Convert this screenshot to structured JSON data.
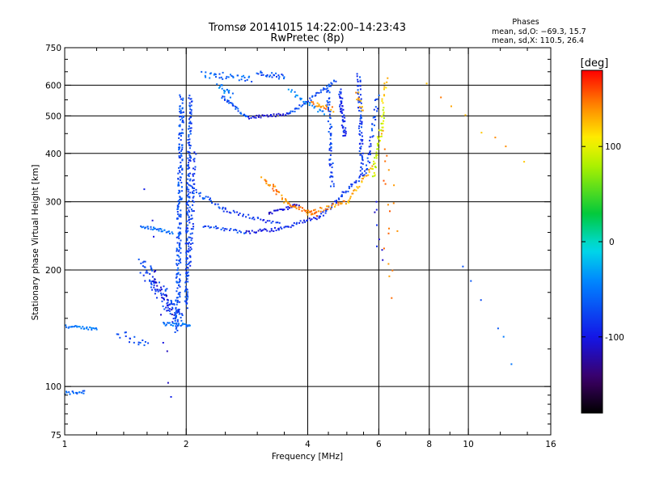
{
  "header": {
    "title": "Tromsø 20141015 14:22:00–14:23:43",
    "subtitle": "RwPretec (8p)"
  },
  "phase_info": {
    "heading": "Phases",
    "o_line": "mean, sd,O: −69.3, 15.7",
    "x_line": "mean, sd,X: 110.5, 26.4"
  },
  "chart_data": {
    "type": "scatter",
    "xlabel": "Frequency [MHz]",
    "ylabel": "Stationary phase Virtual Height [km]",
    "x_scale": "log",
    "y_scale": "log",
    "xlim": [
      1,
      16
    ],
    "ylim": [
      75,
      750
    ],
    "x_ticks": [
      1,
      2,
      4,
      6,
      8,
      10,
      16
    ],
    "y_ticks": [
      75,
      100,
      200,
      300,
      400,
      500,
      600,
      750
    ],
    "x_gridlines": [
      2,
      4,
      6,
      8,
      10
    ],
    "y_gridlines": [
      100,
      200,
      300,
      400,
      500,
      600
    ],
    "grid": true,
    "colorbar": {
      "label": "[deg]",
      "range": [
        -180,
        180
      ],
      "ticks": [
        100,
        0,
        -100
      ],
      "colormap": "rainbow"
    },
    "series": [
      {
        "start": [
          1.0,
          96
        ],
        "end": [
          1.12,
          97
        ],
        "phase": -60,
        "count": 18,
        "spread": 0.012
      },
      {
        "start": [
          1.0,
          143
        ],
        "end": [
          1.2,
          141
        ],
        "phase": -50,
        "count": 28,
        "spread": 0.008
      },
      {
        "start": [
          1.35,
          138
        ],
        "end": [
          1.6,
          128
        ],
        "phase": -70,
        "count": 18,
        "spread": 0.03
      },
      {
        "start": [
          1.55,
          258
        ],
        "end": [
          1.85,
          250
        ],
        "phase": -55,
        "count": 30,
        "spread": 0.01
      },
      {
        "start": [
          1.55,
          205
        ],
        "end": [
          1.95,
          148
        ],
        "phase": -75,
        "count": 90,
        "spread": 0.05
      },
      {
        "start": [
          1.65,
          195
        ],
        "end": [
          1.85,
          150
        ],
        "phase": -110,
        "count": 25,
        "spread": 0.03
      },
      {
        "start": [
          1.75,
          145
        ],
        "end": [
          2.05,
          144
        ],
        "phase": -50,
        "count": 30,
        "spread": 0.01
      },
      {
        "start": [
          1.9,
          140
        ],
        "end": [
          1.95,
          560
        ],
        "phase": -70,
        "count": 220,
        "spread": 0.025
      },
      {
        "start": [
          2.0,
          160
        ],
        "end": [
          2.05,
          560
        ],
        "phase": -75,
        "count": 170,
        "spread": 0.02
      },
      {
        "start": [
          2.05,
          205
        ],
        "end": [
          2.1,
          400
        ],
        "phase": -80,
        "count": 50,
        "spread": 0.015
      },
      {
        "start": [
          2.2,
          640
        ],
        "end": [
          2.9,
          625
        ],
        "phase": -60,
        "count": 35,
        "spread": 0.02
      },
      {
        "start": [
          3.0,
          645
        ],
        "end": [
          3.5,
          630
        ],
        "phase": -70,
        "count": 25,
        "spread": 0.015
      },
      {
        "start": [
          2.4,
          600
        ],
        "end": [
          2.6,
          565
        ],
        "phase": -45,
        "count": 18,
        "spread": 0.02
      },
      {
        "start": [
          2.45,
          560
        ],
        "end": [
          2.85,
          495
        ],
        "phase": -70,
        "count": 30,
        "spread": 0.01
      },
      {
        "start": [
          2.85,
          495
        ],
        "end": [
          3.6,
          505
        ],
        "phase": -105,
        "count": 30,
        "spread": 0.008
      },
      {
        "start": [
          3.6,
          505
        ],
        "end": [
          4.7,
          615
        ],
        "phase": -75,
        "count": 40,
        "spread": 0.01
      },
      {
        "start": [
          3.6,
          580
        ],
        "end": [
          4.4,
          505
        ],
        "phase": -45,
        "count": 25,
        "spread": 0.015
      },
      {
        "start": [
          4.1,
          540
        ],
        "end": [
          4.6,
          520
        ],
        "phase": 140,
        "count": 20,
        "spread": 0.015
      },
      {
        "start": [
          4.5,
          600
        ],
        "end": [
          4.6,
          330
        ],
        "phase": -75,
        "count": 60,
        "spread": 0.02
      },
      {
        "start": [
          4.8,
          580
        ],
        "end": [
          4.95,
          440
        ],
        "phase": -90,
        "count": 50,
        "spread": 0.02
      },
      {
        "start": [
          5.35,
          640
        ],
        "end": [
          5.45,
          360
        ],
        "phase": -80,
        "count": 70,
        "spread": 0.02
      },
      {
        "start": [
          5.3,
          570
        ],
        "end": [
          5.45,
          520
        ],
        "phase": 130,
        "count": 12,
        "spread": 0.02
      },
      {
        "start": [
          2.0,
          330
        ],
        "end": [
          2.5,
          285
        ],
        "phase": -70,
        "count": 30,
        "spread": 0.015
      },
      {
        "start": [
          2.5,
          285
        ],
        "end": [
          3.4,
          262
        ],
        "phase": -85,
        "count": 30,
        "spread": 0.01
      },
      {
        "start": [
          2.2,
          260
        ],
        "end": [
          2.8,
          250
        ],
        "phase": -75,
        "count": 25,
        "spread": 0.01
      },
      {
        "start": [
          2.8,
          250
        ],
        "end": [
          3.4,
          255
        ],
        "phase": -100,
        "count": 25,
        "spread": 0.01
      },
      {
        "start": [
          3.4,
          255
        ],
        "end": [
          4.3,
          275
        ],
        "phase": -90,
        "count": 30,
        "spread": 0.01
      },
      {
        "start": [
          4.3,
          275
        ],
        "end": [
          5.6,
          360
        ],
        "phase": -80,
        "count": 45,
        "spread": 0.012
      },
      {
        "start": [
          5.6,
          360
        ],
        "end": [
          5.95,
          560
        ],
        "phase": -75,
        "count": 35,
        "spread": 0.02
      },
      {
        "start": [
          3.2,
          280
        ],
        "end": [
          3.8,
          295
        ],
        "phase": -105,
        "count": 25,
        "spread": 0.01
      },
      {
        "start": [
          3.1,
          345
        ],
        "end": [
          3.6,
          295
        ],
        "phase": 145,
        "count": 30,
        "spread": 0.02
      },
      {
        "start": [
          3.6,
          295
        ],
        "end": [
          4.2,
          278
        ],
        "phase": 150,
        "count": 25,
        "spread": 0.01
      },
      {
        "start": [
          4.0,
          280
        ],
        "end": [
          5.0,
          300
        ],
        "phase": 140,
        "count": 30,
        "spread": 0.012
      },
      {
        "start": [
          5.0,
          300
        ],
        "end": [
          5.8,
          370
        ],
        "phase": 130,
        "count": 25,
        "spread": 0.015
      },
      {
        "start": [
          5.8,
          350
        ],
        "end": [
          6.2,
          520
        ],
        "phase": 90,
        "count": 45,
        "spread": 0.02
      },
      {
        "start": [
          6.1,
          540
        ],
        "end": [
          6.25,
          620
        ],
        "phase": 120,
        "count": 12,
        "spread": 0.02
      },
      {
        "start": [
          6.2,
          480
        ],
        "end": [
          6.35,
          170
        ],
        "phase": 150,
        "count": 14,
        "spread": 0.05
      },
      {
        "start": [
          6.3,
          380
        ],
        "end": [
          6.55,
          240
        ],
        "phase": 140,
        "count": 6,
        "spread": 0.05
      },
      {
        "start": [
          5.9,
          310
        ],
        "end": [
          6.1,
          205
        ],
        "phase": -100,
        "count": 8,
        "spread": 0.04
      },
      {
        "start": [
          7.8,
          590
        ],
        "end": [
          13.5,
          380
        ],
        "phase": 135,
        "count": 8,
        "spread": 0.05
      },
      {
        "start": [
          9.8,
          200
        ],
        "end": [
          13.0,
          120
        ],
        "phase": -60,
        "count": 6,
        "spread": 0.05
      },
      {
        "start": [
          1.6,
          310
        ],
        "end": [
          1.8,
          90
        ],
        "phase": -100,
        "count": 10,
        "spread": 0.05
      }
    ]
  }
}
